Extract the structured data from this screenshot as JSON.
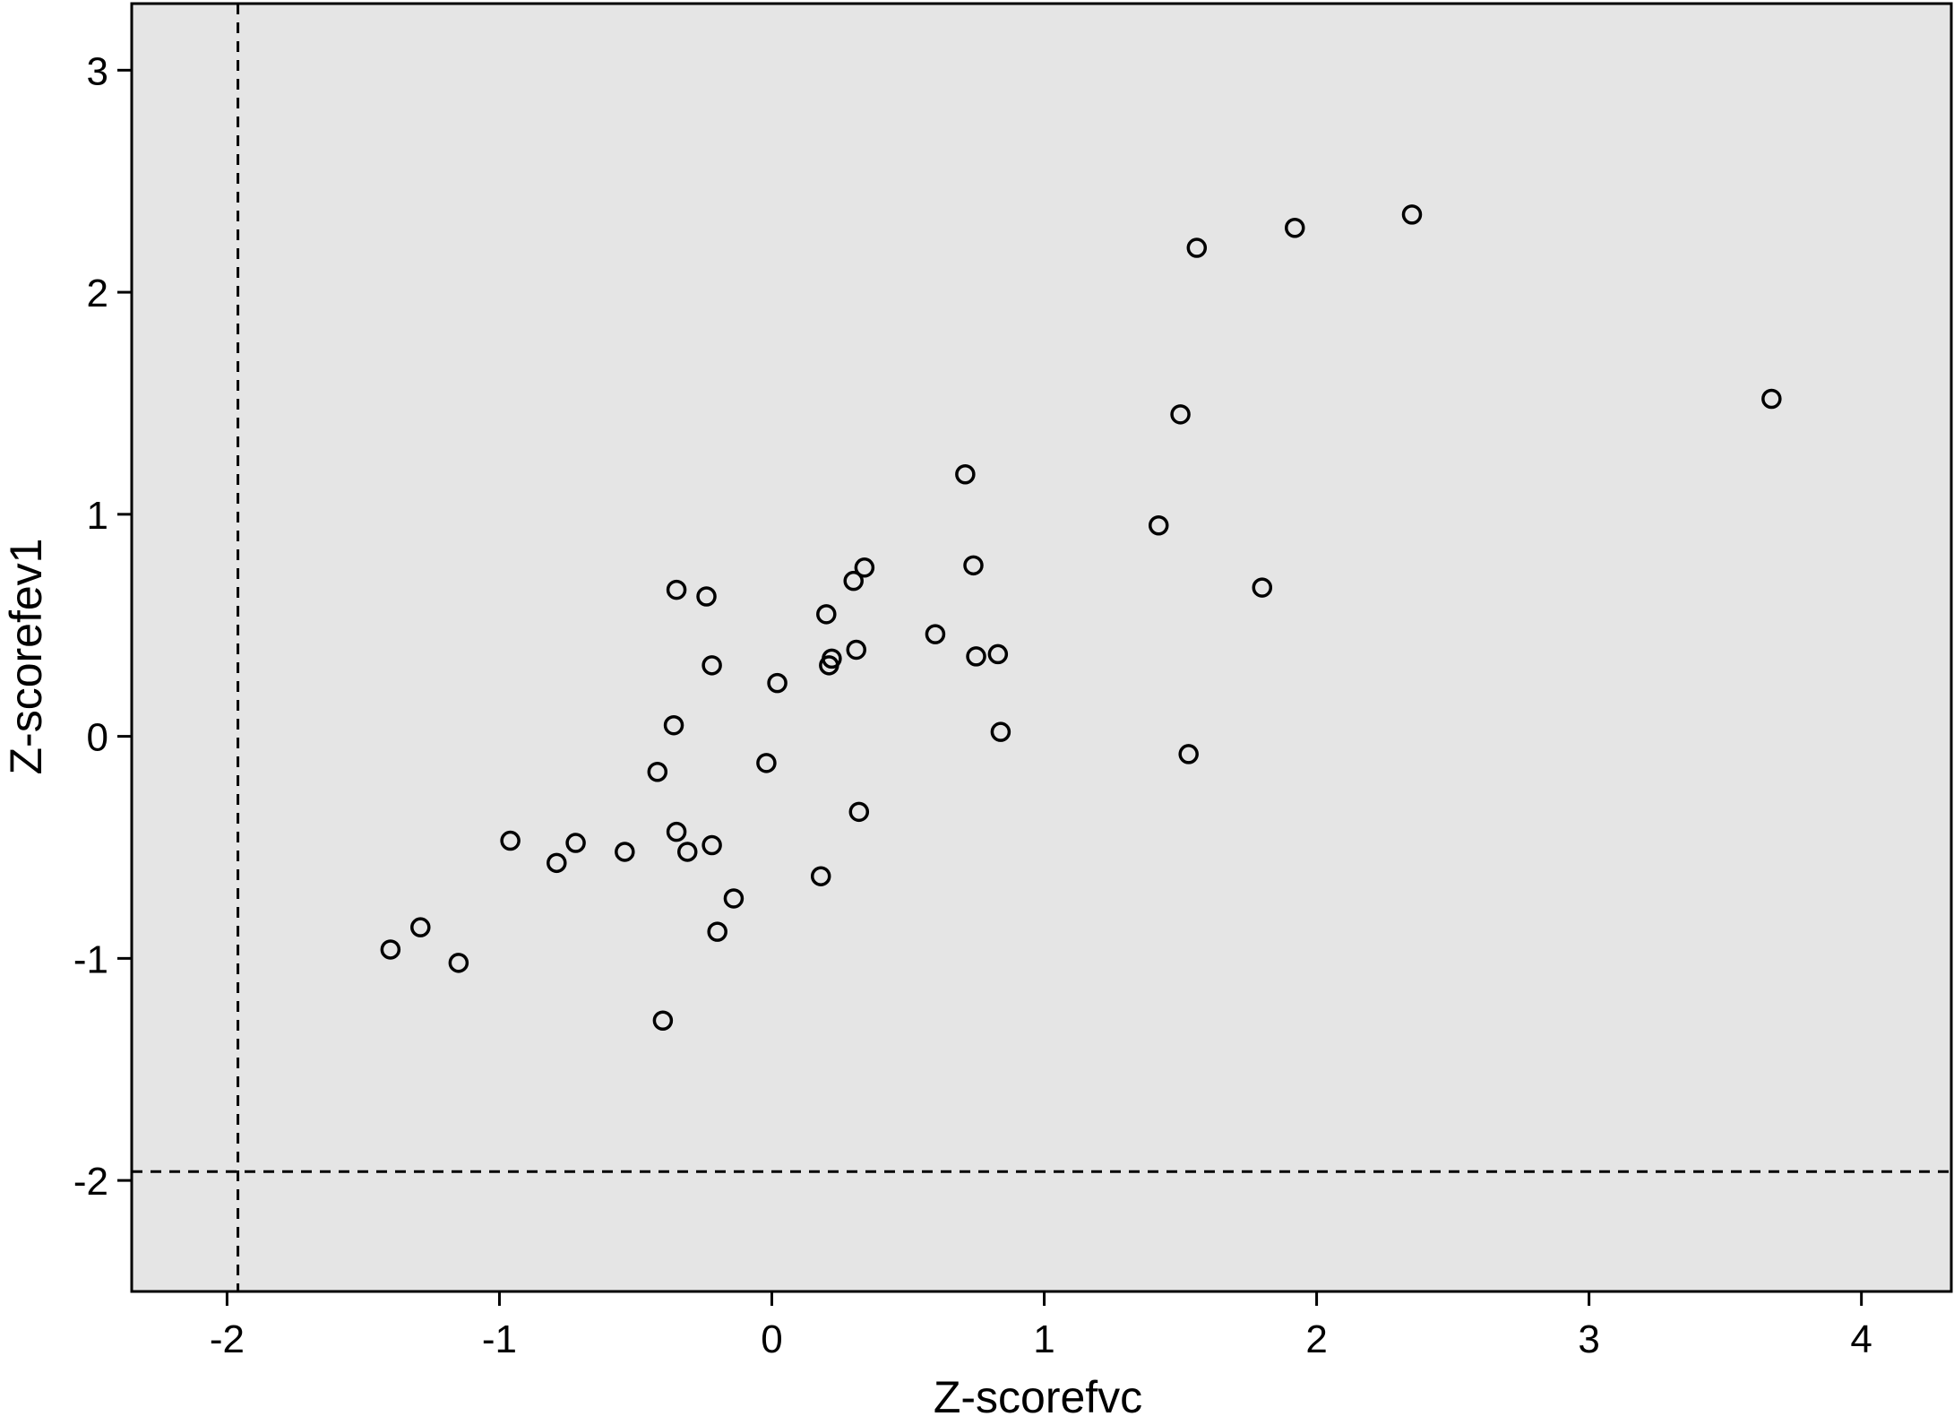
{
  "chart_data": {
    "type": "scatter",
    "title": "",
    "xlabel": "Z-scorefvc",
    "ylabel": "Z-scorefev1",
    "xlim": [
      -2.35,
      4.33
    ],
    "ylim": [
      -2.5,
      3.3
    ],
    "xticks": [
      -2,
      -1,
      0,
      1,
      2,
      3,
      4
    ],
    "yticks": [
      -2,
      -1,
      0,
      1,
      2,
      3
    ],
    "xtick_labels": [
      "-2",
      "-1",
      "0",
      "1",
      "2",
      "3",
      "4"
    ],
    "ytick_labels": [
      "-2",
      "-1",
      "0",
      "1",
      "2",
      "3"
    ],
    "grid": false,
    "legend": "none",
    "background_color": "#e5e5e5",
    "marker_color": "#000000",
    "reference_lines": [
      {
        "orientation": "vertical",
        "x": -1.96,
        "style": "dashed"
      },
      {
        "orientation": "horizontal",
        "y": -1.96,
        "style": "dashed"
      }
    ],
    "points": [
      {
        "x": -1.4,
        "y": -0.96
      },
      {
        "x": -1.29,
        "y": -0.86
      },
      {
        "x": -1.15,
        "y": -1.02
      },
      {
        "x": -0.96,
        "y": -0.47
      },
      {
        "x": -0.79,
        "y": -0.57
      },
      {
        "x": -0.72,
        "y": -0.48
      },
      {
        "x": -0.54,
        "y": -0.52
      },
      {
        "x": -0.42,
        "y": -0.16
      },
      {
        "x": -0.4,
        "y": -1.28
      },
      {
        "x": -0.36,
        "y": 0.05
      },
      {
        "x": -0.35,
        "y": 0.66
      },
      {
        "x": -0.35,
        "y": -0.43
      },
      {
        "x": -0.31,
        "y": -0.52
      },
      {
        "x": -0.24,
        "y": 0.63
      },
      {
        "x": -0.22,
        "y": 0.32
      },
      {
        "x": -0.22,
        "y": -0.49
      },
      {
        "x": -0.2,
        "y": -0.88
      },
      {
        "x": -0.14,
        "y": -0.73
      },
      {
        "x": -0.02,
        "y": -0.12
      },
      {
        "x": 0.02,
        "y": 0.24
      },
      {
        "x": 0.18,
        "y": -0.63
      },
      {
        "x": 0.2,
        "y": 0.55
      },
      {
        "x": 0.21,
        "y": 0.32
      },
      {
        "x": 0.22,
        "y": 0.35
      },
      {
        "x": 0.3,
        "y": 0.7
      },
      {
        "x": 0.31,
        "y": 0.39
      },
      {
        "x": 0.32,
        "y": -0.34
      },
      {
        "x": 0.34,
        "y": 0.76
      },
      {
        "x": 0.6,
        "y": 0.46
      },
      {
        "x": 0.71,
        "y": 1.18
      },
      {
        "x": 0.74,
        "y": 0.77
      },
      {
        "x": 0.75,
        "y": 0.36
      },
      {
        "x": 0.83,
        "y": 0.37
      },
      {
        "x": 0.84,
        "y": 0.02
      },
      {
        "x": 1.42,
        "y": 0.95
      },
      {
        "x": 1.5,
        "y": 1.45
      },
      {
        "x": 1.53,
        "y": -0.08
      },
      {
        "x": 1.56,
        "y": 2.2
      },
      {
        "x": 1.8,
        "y": 0.67
      },
      {
        "x": 1.92,
        "y": 2.29
      },
      {
        "x": 2.35,
        "y": 2.35
      },
      {
        "x": 3.67,
        "y": 1.52
      }
    ]
  }
}
